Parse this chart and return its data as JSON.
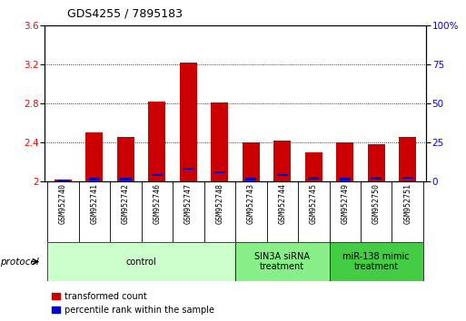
{
  "title": "GDS4255 / 7895183",
  "samples": [
    "GSM952740",
    "GSM952741",
    "GSM952742",
    "GSM952746",
    "GSM952747",
    "GSM952748",
    "GSM952743",
    "GSM952744",
    "GSM952745",
    "GSM952749",
    "GSM952750",
    "GSM952751"
  ],
  "red_values": [
    2.02,
    2.5,
    2.46,
    2.82,
    3.22,
    2.81,
    2.4,
    2.42,
    2.3,
    2.4,
    2.38,
    2.46
  ],
  "blue_values": [
    0.5,
    1.5,
    1.5,
    4.0,
    8.0,
    6.0,
    1.5,
    4.0,
    2.0,
    1.5,
    2.0,
    2.5
  ],
  "ylim_left": [
    2.0,
    3.6
  ],
  "ylim_right": [
    0,
    100
  ],
  "yticks_left": [
    2.0,
    2.4,
    2.8,
    3.2,
    3.6
  ],
  "yticks_right": [
    0,
    25,
    50,
    75,
    100
  ],
  "ytick_labels_left": [
    "2",
    "2.4",
    "2.8",
    "3.2",
    "3.6"
  ],
  "ytick_labels_right": [
    "0",
    "25",
    "50",
    "75",
    "100%"
  ],
  "groups": [
    {
      "label": "control",
      "start": 0,
      "end": 5,
      "color": "#ccffcc"
    },
    {
      "label": "SIN3A siRNA\ntreatment",
      "start": 6,
      "end": 8,
      "color": "#88ee88"
    },
    {
      "label": "miR-138 mimic\ntreatment",
      "start": 9,
      "end": 11,
      "color": "#44cc44"
    }
  ],
  "bar_color_red": "#cc0000",
  "bar_color_blue": "#0000cc",
  "bar_width": 0.55,
  "base_value": 2.0,
  "sample_bg_color": "#c8c8c8",
  "background_color": "#ffffff",
  "protocol_label": "protocol",
  "legend_red": "transformed count",
  "legend_blue": "percentile rank within the sample"
}
